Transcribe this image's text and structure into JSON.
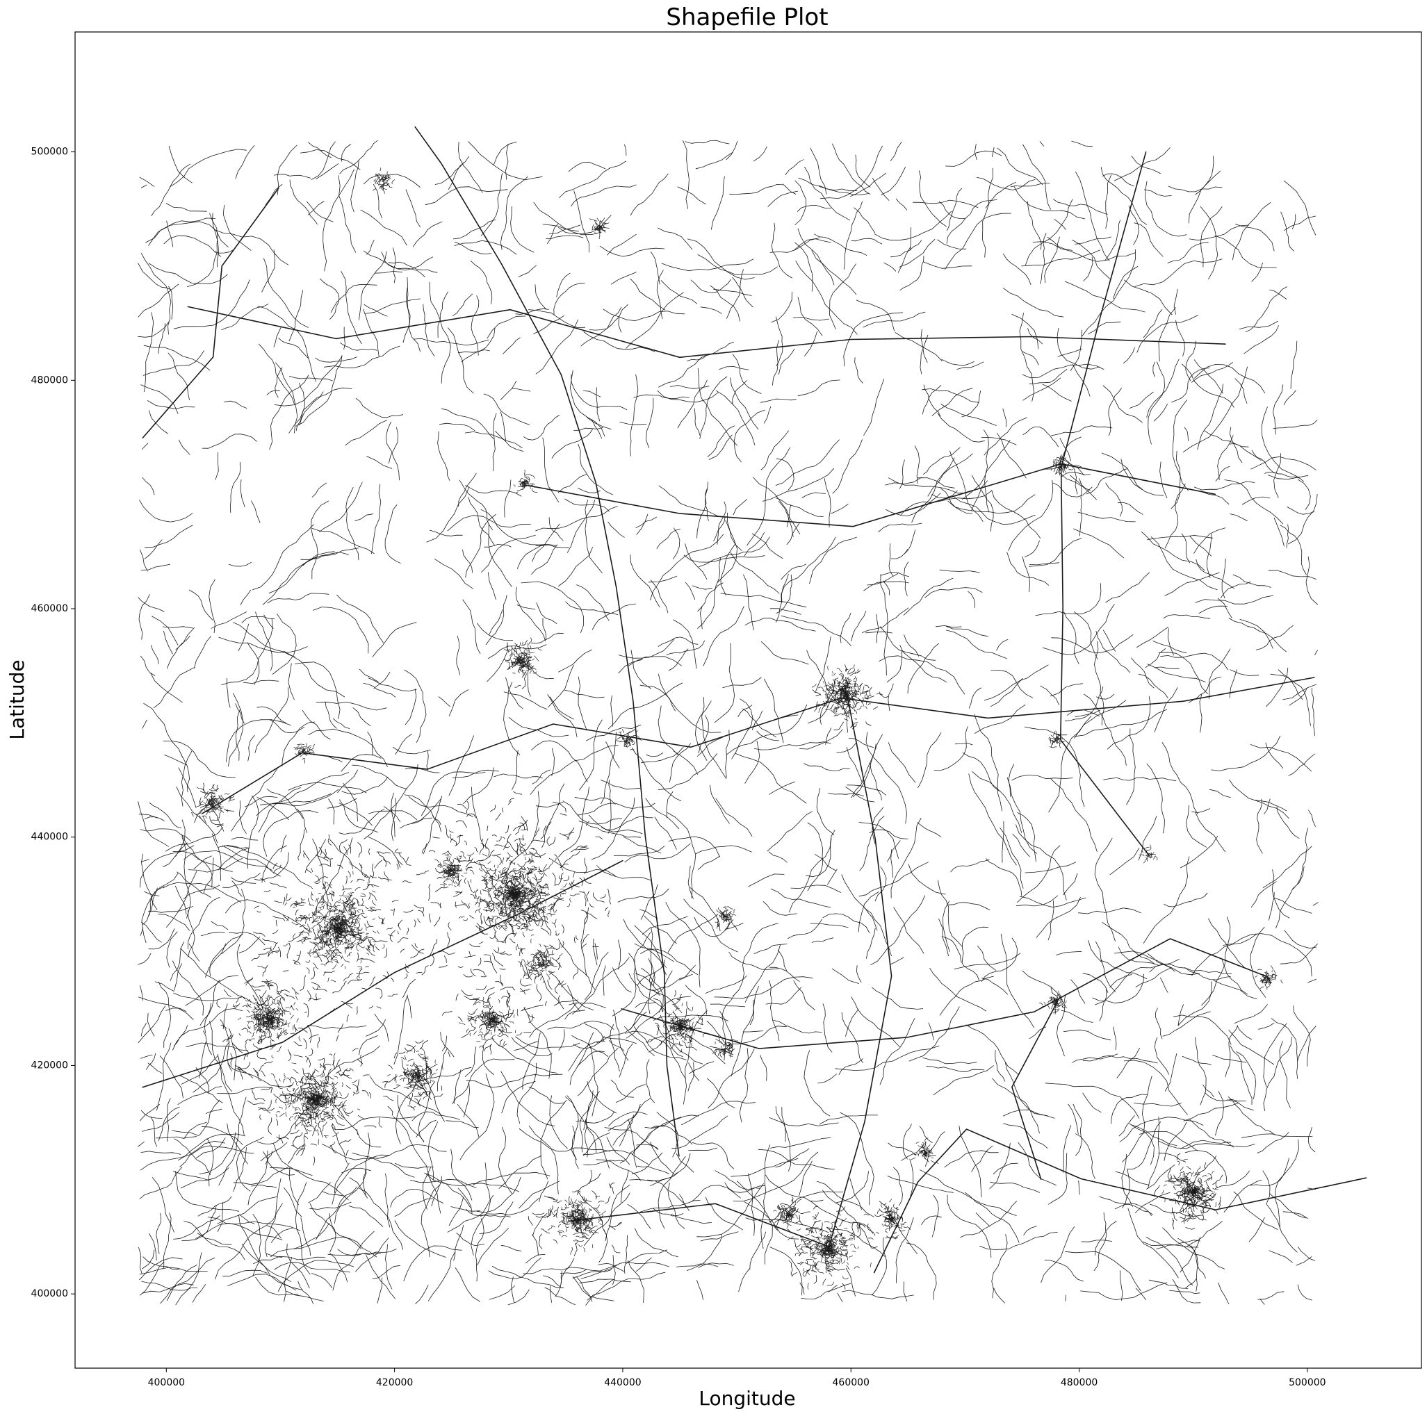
{
  "chart_data": {
    "type": "map",
    "title": "Shapefile Plot",
    "xlabel": "Longitude",
    "ylabel": "Latitude",
    "xlim": [
      392000,
      510000
    ],
    "ylim": [
      393500,
      510500
    ],
    "xticks": [
      400000,
      420000,
      440000,
      460000,
      480000,
      500000
    ],
    "yticks": [
      400000,
      420000,
      440000,
      460000,
      480000,
      500000
    ],
    "xtick_labels": [
      "400000",
      "420000",
      "440000",
      "460000",
      "480000",
      "500000"
    ],
    "ytick_labels": [
      "400000",
      "420000",
      "440000",
      "460000",
      "480000",
      "500000"
    ],
    "grid": false,
    "line_color": "#1a1a1a",
    "features": "road network line shapefile"
  }
}
